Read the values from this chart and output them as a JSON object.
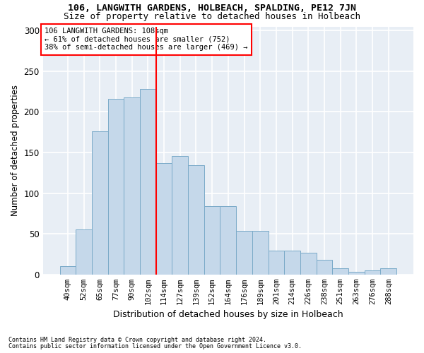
{
  "title": "106, LANGWITH GARDENS, HOLBEACH, SPALDING, PE12 7JN",
  "subtitle": "Size of property relative to detached houses in Holbeach",
  "xlabel": "Distribution of detached houses by size in Holbeach",
  "ylabel": "Number of detached properties",
  "categories": [
    "40sqm",
    "52sqm",
    "65sqm",
    "77sqm",
    "90sqm",
    "102sqm",
    "114sqm",
    "127sqm",
    "139sqm",
    "152sqm",
    "164sqm",
    "176sqm",
    "189sqm",
    "201sqm",
    "214sqm",
    "226sqm",
    "238sqm",
    "251sqm",
    "263sqm",
    "276sqm",
    "288sqm"
  ],
  "values": [
    10,
    55,
    176,
    216,
    218,
    228,
    137,
    146,
    134,
    84,
    84,
    54,
    54,
    29,
    29,
    27,
    18,
    8,
    3,
    5,
    8
  ],
  "bar_color": "#c5d8ea",
  "bar_edge_color": "#7aaac8",
  "vline_x": 6.0,
  "vline_color": "red",
  "annotation_text": "106 LANGWITH GARDENS: 108sqm\n← 61% of detached houses are smaller (752)\n38% of semi-detached houses are larger (469) →",
  "annotation_box_facecolor": "white",
  "annotation_box_edgecolor": "red",
  "footnote1": "Contains HM Land Registry data © Crown copyright and database right 2024.",
  "footnote2": "Contains public sector information licensed under the Open Government Licence v3.0.",
  "ylim": [
    0,
    305
  ],
  "yticks": [
    0,
    50,
    100,
    150,
    200,
    250,
    300
  ],
  "plot_bgcolor": "#e8eef5",
  "grid_color": "#ffffff",
  "title_fontsize": 9.5,
  "subtitle_fontsize": 9.0,
  "ylabel_fontsize": 8.5,
  "xlabel_fontsize": 9.0,
  "tick_fontsize": 7.5,
  "annot_fontsize": 7.5,
  "footnote_fontsize": 6.0
}
